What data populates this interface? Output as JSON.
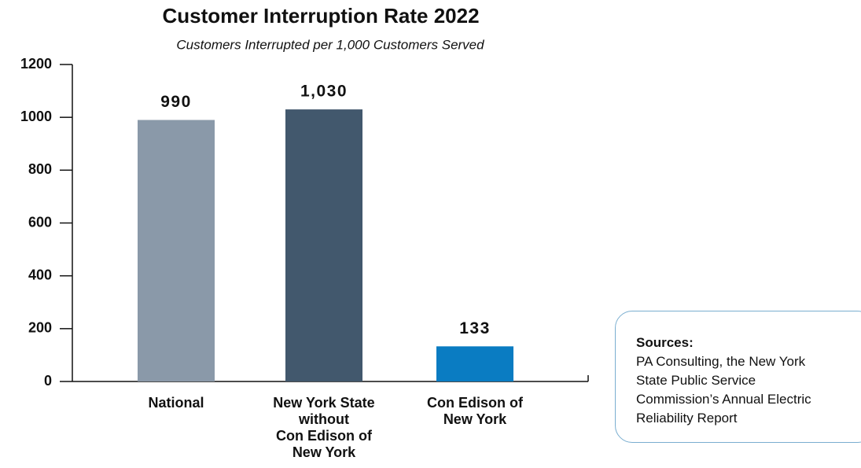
{
  "chart_data": {
    "type": "bar",
    "title": "Customer Interruption Rate 2022",
    "subtitle": "Customers Interrupted per 1,000 Customers Served",
    "categories": [
      "National",
      "New York State\nwithout\nCon Edison of\nNew York",
      "Con Edison of\nNew York"
    ],
    "values": [
      990,
      1030,
      133
    ],
    "value_labels": [
      "990",
      "1,030",
      "133"
    ],
    "colors": [
      "#8a99a9",
      "#42586d",
      "#0a7cc2"
    ],
    "ylim": [
      0,
      1200
    ],
    "yticks": [
      0,
      200,
      400,
      600,
      800,
      1000,
      1200
    ],
    "grid": false
  },
  "sources": {
    "heading": "Sources:",
    "text": "PA Consulting, the New York\nState Public Service\nCommission’s Annual Electric\nReliability Report"
  }
}
